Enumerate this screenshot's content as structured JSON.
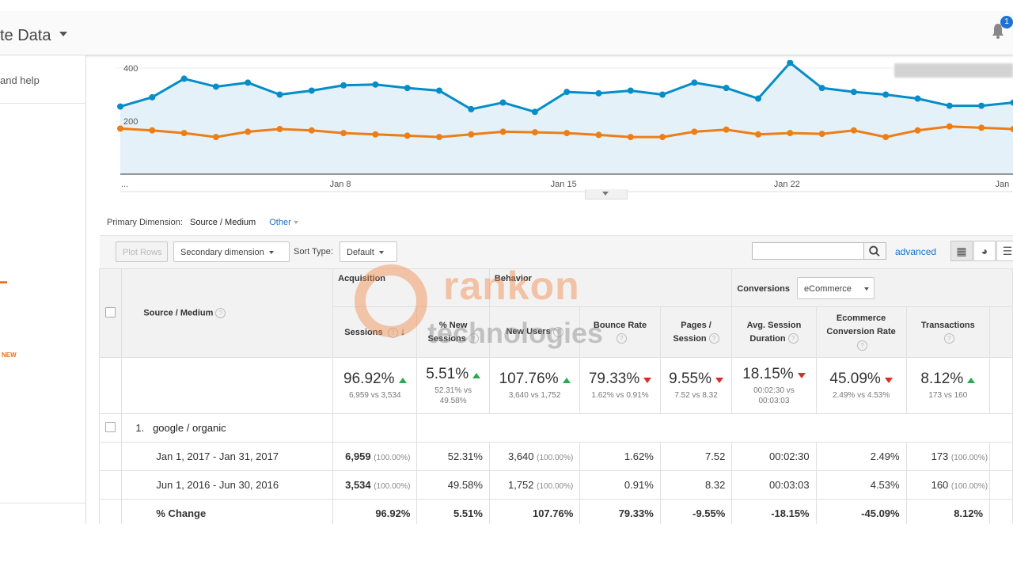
{
  "header": {
    "view_title": "te Data",
    "notification_count": "1"
  },
  "sidebar": {
    "help_label": "and help",
    "new_badge": "NEW"
  },
  "chart_data": {
    "type": "line",
    "y_tick_labels": [
      "400",
      "200"
    ],
    "ylim": [
      0,
      400
    ],
    "x_tick_labels": [
      "...",
      "Jan 8",
      "Jan 15",
      "Jan 22",
      "Jan"
    ],
    "series": [
      {
        "color": "#058dc7",
        "values": [
          255,
          290,
          360,
          330,
          345,
          300,
          315,
          335,
          338,
          325,
          315,
          245,
          270,
          235,
          310,
          305,
          315,
          300,
          345,
          325,
          285,
          420,
          325,
          310,
          300,
          285,
          258,
          258,
          270
        ]
      },
      {
        "color": "#ed7e17",
        "values": [
          172,
          165,
          155,
          140,
          160,
          170,
          165,
          155,
          150,
          145,
          140,
          150,
          160,
          158,
          155,
          148,
          140,
          140,
          160,
          168,
          150,
          155,
          152,
          165,
          140,
          165,
          180,
          175,
          170
        ]
      }
    ]
  },
  "dimension": {
    "label": "Primary Dimension:",
    "current": "Source / Medium",
    "other": "Other"
  },
  "toolbar": {
    "plot_rows": "Plot Rows",
    "secondary_dimension": "Secondary dimension",
    "sort_type_label": "Sort Type:",
    "sort_type_value": "Default",
    "search_value": "",
    "advanced": "advanced"
  },
  "table": {
    "source_medium_header": "Source / Medium",
    "groups": {
      "acquisition": "Acquisition",
      "behavior": "Behavior",
      "conversions": "Conversions",
      "conversions_select": "eCommerce"
    },
    "columns": [
      {
        "line1": "Sessions",
        "line2": ""
      },
      {
        "line1": "% New",
        "line2": "Sessions"
      },
      {
        "line1": "New Users",
        "line2": ""
      },
      {
        "line1": "Bounce Rate",
        "line2": ""
      },
      {
        "line1": "Pages /",
        "line2": "Session"
      },
      {
        "line1": "Avg. Session",
        "line2": "Duration"
      },
      {
        "line1": "Ecommerce",
        "line2": "Conversion Rate"
      },
      {
        "line1": "Transactions",
        "line2": ""
      }
    ],
    "summary": [
      {
        "value": "96.92%",
        "trend": "up",
        "sub1": "6,959 vs 3,534",
        "sub2": ""
      },
      {
        "value": "5.51%",
        "trend": "up",
        "sub1": "52.31% vs",
        "sub2": "49.58%"
      },
      {
        "value": "107.76%",
        "trend": "up",
        "sub1": "3,640 vs 1,752",
        "sub2": ""
      },
      {
        "value": "79.33%",
        "trend": "down",
        "sub1": "1.62% vs 0.91%",
        "sub2": ""
      },
      {
        "value": "9.55%",
        "trend": "down",
        "sub1": "7.52 vs 8.32",
        "sub2": ""
      },
      {
        "value": "18.15%",
        "trend": "down",
        "sub1": "00:02:30 vs",
        "sub2": "00:03:03"
      },
      {
        "value": "45.09%",
        "trend": "down",
        "sub1": "2.49% vs 4.53%",
        "sub2": ""
      },
      {
        "value": "8.12%",
        "trend": "up",
        "sub1": "173 vs 160",
        "sub2": ""
      }
    ],
    "row": {
      "index": "1.",
      "label": "google / organic"
    },
    "periods": [
      {
        "label": "Jan 1, 2017 - Jan 31, 2017",
        "sessions": "6,959",
        "sessions_pct": "(100.00%)",
        "pct_new": "52.31%",
        "new_users": "3,640",
        "new_users_pct": "(100.00%)",
        "bounce": "1.62%",
        "pages": "7.52",
        "duration": "00:02:30",
        "conv": "2.49%",
        "transactions": "173",
        "transactions_pct": "(100.00%)"
      },
      {
        "label": "Jun 1, 2016 - Jun 30, 2016",
        "sessions": "3,534",
        "sessions_pct": "(100.00%)",
        "pct_new": "49.58%",
        "new_users": "1,752",
        "new_users_pct": "(100.00%)",
        "bounce": "0.91%",
        "pages": "8.32",
        "duration": "00:03:03",
        "conv": "4.53%",
        "transactions": "160",
        "transactions_pct": "(100.00%)"
      }
    ],
    "change": {
      "label": "% Change",
      "sessions": "96.92%",
      "pct_new": "5.51%",
      "new_users": "107.76%",
      "bounce": "79.33%",
      "pages": "-9.55%",
      "duration": "-18.15%",
      "conv": "-45.09%",
      "transactions": "8.12%"
    }
  },
  "watermark": {
    "line1": "rankon",
    "line2": "technologies"
  }
}
